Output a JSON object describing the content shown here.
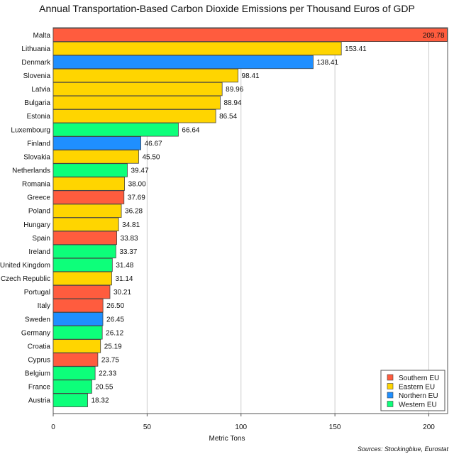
{
  "chart_data": {
    "type": "bar",
    "orientation": "horizontal",
    "title": "Annual Transportation-Based Carbon Dioxide Emissions per Thousand Euros of GDP",
    "xlabel": "Metric Tons",
    "ylabel": "",
    "xlim": [
      0,
      210
    ],
    "xticks": [
      0,
      50,
      100,
      150,
      200
    ],
    "grid": true,
    "legend_position": "bottom-right",
    "source": "Sources: Stockingblue, Eurostat",
    "groups": [
      {
        "name": "Southern EU",
        "color": "#ff5c3e"
      },
      {
        "name": "Eastern EU",
        "color": "#ffd500"
      },
      {
        "name": "Northern EU",
        "color": "#1f8fff"
      },
      {
        "name": "Western EU",
        "color": "#0dff7a"
      }
    ],
    "bars": [
      {
        "category": "Malta",
        "value": 209.78,
        "label": "209.78",
        "group": "Southern EU"
      },
      {
        "category": "Lithuania",
        "value": 153.41,
        "label": "153.41",
        "group": "Eastern EU"
      },
      {
        "category": "Denmark",
        "value": 138.41,
        "label": "138.41",
        "group": "Northern EU"
      },
      {
        "category": "Slovenia",
        "value": 98.41,
        "label": "98.41",
        "group": "Eastern EU"
      },
      {
        "category": "Latvia",
        "value": 89.96,
        "label": "89.96",
        "group": "Eastern EU"
      },
      {
        "category": "Bulgaria",
        "value": 88.94,
        "label": "88.94",
        "group": "Eastern EU"
      },
      {
        "category": "Estonia",
        "value": 86.54,
        "label": "86.54",
        "group": "Eastern EU"
      },
      {
        "category": "Luxembourg",
        "value": 66.64,
        "label": "66.64",
        "group": "Western EU"
      },
      {
        "category": "Finland",
        "value": 46.67,
        "label": "46.67",
        "group": "Northern EU"
      },
      {
        "category": "Slovakia",
        "value": 45.5,
        "label": "45.50",
        "group": "Eastern EU"
      },
      {
        "category": "Netherlands",
        "value": 39.47,
        "label": "39.47",
        "group": "Western EU"
      },
      {
        "category": "Romania",
        "value": 38.0,
        "label": "38.00",
        "group": "Eastern EU"
      },
      {
        "category": "Greece",
        "value": 37.69,
        "label": "37.69",
        "group": "Southern EU"
      },
      {
        "category": "Poland",
        "value": 36.28,
        "label": "36.28",
        "group": "Eastern EU"
      },
      {
        "category": "Hungary",
        "value": 34.81,
        "label": "34.81",
        "group": "Eastern EU"
      },
      {
        "category": "Spain",
        "value": 33.83,
        "label": "33.83",
        "group": "Southern EU"
      },
      {
        "category": "Ireland",
        "value": 33.37,
        "label": "33.37",
        "group": "Western EU"
      },
      {
        "category": "United Kingdom",
        "value": 31.48,
        "label": "31.48",
        "group": "Western EU"
      },
      {
        "category": "Czech Republic",
        "value": 31.14,
        "label": "31.14",
        "group": "Eastern EU"
      },
      {
        "category": "Portugal",
        "value": 30.21,
        "label": "30.21",
        "group": "Southern EU"
      },
      {
        "category": "Italy",
        "value": 26.5,
        "label": "26.50",
        "group": "Southern EU"
      },
      {
        "category": "Sweden",
        "value": 26.45,
        "label": "26.45",
        "group": "Northern EU"
      },
      {
        "category": "Germany",
        "value": 26.12,
        "label": "26.12",
        "group": "Western EU"
      },
      {
        "category": "Croatia",
        "value": 25.19,
        "label": "25.19",
        "group": "Eastern EU"
      },
      {
        "category": "Cyprus",
        "value": 23.75,
        "label": "23.75",
        "group": "Southern EU"
      },
      {
        "category": "Belgium",
        "value": 22.33,
        "label": "22.33",
        "group": "Western EU"
      },
      {
        "category": "France",
        "value": 20.55,
        "label": "20.55",
        "group": "Western EU"
      },
      {
        "category": "Austria",
        "value": 18.32,
        "label": "18.32",
        "group": "Western EU"
      }
    ]
  }
}
